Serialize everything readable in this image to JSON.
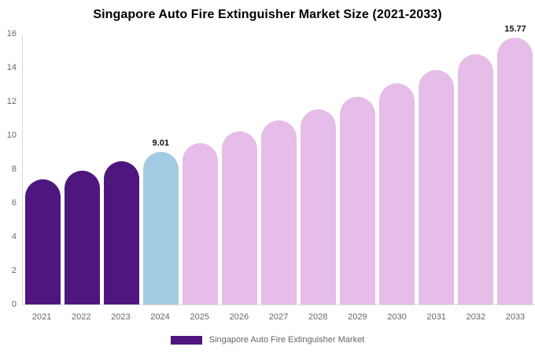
{
  "title": "Singapore Auto Fire Extinguisher Market Size (2021-2033)",
  "legend": {
    "label": "Singapore Auto Fire Extinguisher Market",
    "color": "#4E167E"
  },
  "colors": {
    "historical_bar": "#4E167E",
    "highlight_bar": "#A3CBE3",
    "forecast_bar": "#E6BDE8",
    "axis_line": "#d9d9d9",
    "tick_text": "#666666"
  },
  "chart_data": {
    "type": "bar",
    "title": "Singapore Auto Fire Extinguisher Market Size (2021-2033)",
    "categories": [
      "2021",
      "2022",
      "2023",
      "2024",
      "2025",
      "2026",
      "2027",
      "2028",
      "2029",
      "2030",
      "2031",
      "2032",
      "2033"
    ],
    "values": [
      7.42,
      7.92,
      8.45,
      9.01,
      9.56,
      10.22,
      10.88,
      11.56,
      12.3,
      13.05,
      13.88,
      14.8,
      15.77
    ],
    "bar_colors": [
      "#4E167E",
      "#4E167E",
      "#4E167E",
      "#A3CBE3",
      "#E6BDE8",
      "#E6BDE8",
      "#E6BDE8",
      "#E6BDE8",
      "#E6BDE8",
      "#E6BDE8",
      "#E6BDE8",
      "#E6BDE8",
      "#E6BDE8"
    ],
    "data_labels": [
      {
        "index": 3,
        "category": "2024",
        "text": "9.01"
      },
      {
        "index": 12,
        "category": "2033",
        "text": "15.77"
      }
    ],
    "xlabel": "",
    "ylabel": "",
    "ylim": [
      0,
      16
    ],
    "yticks": [
      0,
      2,
      4,
      6,
      8,
      10,
      12,
      14,
      16
    ],
    "grid": false,
    "legend_position": "bottom"
  }
}
